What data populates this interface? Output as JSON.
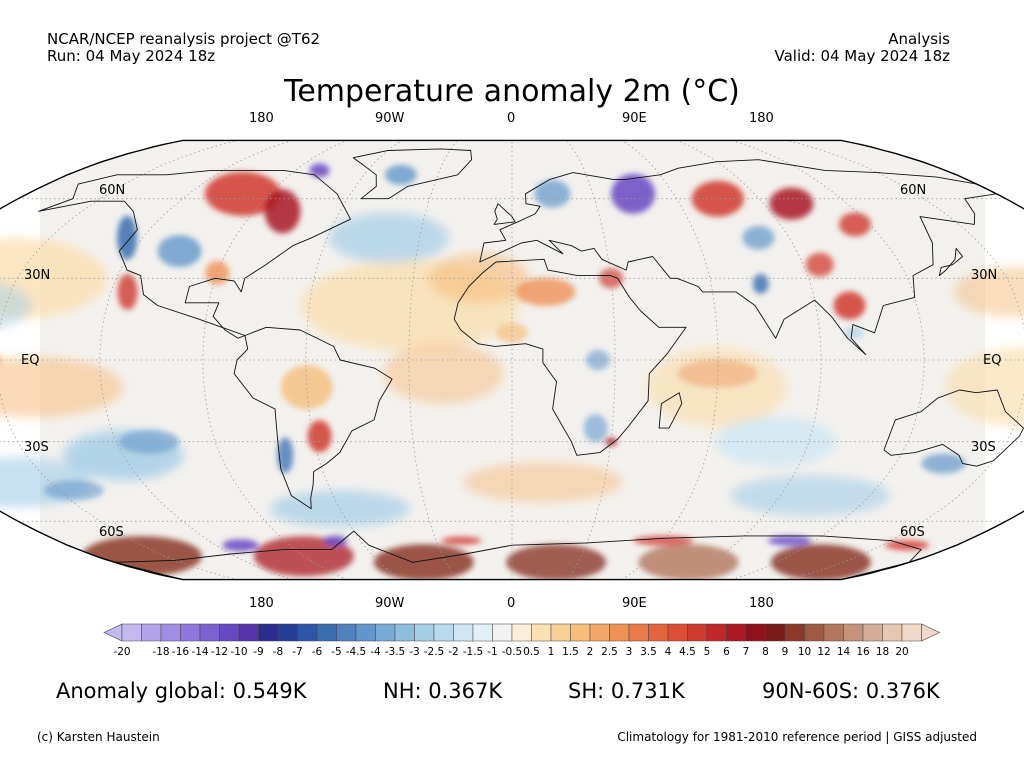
{
  "header": {
    "left_line1": "NCAR/NCEP reanalysis project @T62",
    "left_line2": "Run: 04 May 2024 18z",
    "right_line1": "Analysis",
    "right_line2": "Valid: 04 May 2024 18z"
  },
  "title": "Temperature anomaly 2m (°C)",
  "map": {
    "projection": "Robinson",
    "lon_labels_top": [
      "180",
      "90W",
      "0",
      "90E",
      "180"
    ],
    "lon_labels_bottom": [
      "180",
      "90W",
      "0",
      "90E",
      "180"
    ],
    "lat_labels_left": [
      "60N",
      "30N",
      "EQ",
      "30S",
      "60S"
    ],
    "lat_labels_right": [
      "60N",
      "30N",
      "EQ",
      "30S",
      "60S"
    ],
    "grid_lines": true,
    "ocean_color": "#f3f1ee",
    "outline_color": "#000000"
  },
  "colorbar": {
    "labels": [
      "-20",
      "-18",
      "-16",
      "-14",
      "-12",
      "-10",
      "-9",
      "-8",
      "-7",
      "-6",
      "-5",
      "-4.5",
      "-4",
      "-3.5",
      "-3",
      "-2.5",
      "-2",
      "-1.5",
      "-1",
      "-0.5",
      "0.5",
      "1",
      "1.5",
      "2",
      "2.5",
      "3",
      "3.5",
      "4",
      "4.5",
      "5",
      "6",
      "7",
      "8",
      "9",
      "10",
      "12",
      "14",
      "16",
      "18",
      "20"
    ],
    "colors": [
      "#c4b8f0",
      "#b3a3ea",
      "#a28de4",
      "#8f76dc",
      "#7b60d2",
      "#6849c4",
      "#5533aa",
      "#2b2b8c",
      "#253f96",
      "#2b57a4",
      "#3a6db2",
      "#4f82bf",
      "#6297cb",
      "#78aad6",
      "#8dbddf",
      "#a4cde6",
      "#bbdbed",
      "#d0e7f2",
      "#e3f0f7",
      "#f2f2f2",
      "#fbeed6",
      "#fae0b2",
      "#f8d095",
      "#f6bd7c",
      "#f3a868",
      "#ee9157",
      "#e97b4a",
      "#e3653e",
      "#db4f35",
      "#d03a2e",
      "#c02728",
      "#a91a23",
      "#8f111d",
      "#7a1a16",
      "#8b3a2a",
      "#a05a42",
      "#b3775d",
      "#c49379",
      "#d4ae96",
      "#e6c7b3",
      "#f0d8c9"
    ]
  },
  "stats": {
    "global": "Anomaly global: 0.549K",
    "nh": "NH: 0.367K",
    "sh": "SH: 0.731K",
    "polar": "90N-60S: 0.376K"
  },
  "footer": {
    "left": "(c) Karsten Haustein",
    "right": "Climatology for 1981-2010 reference period | GISS adjusted"
  }
}
